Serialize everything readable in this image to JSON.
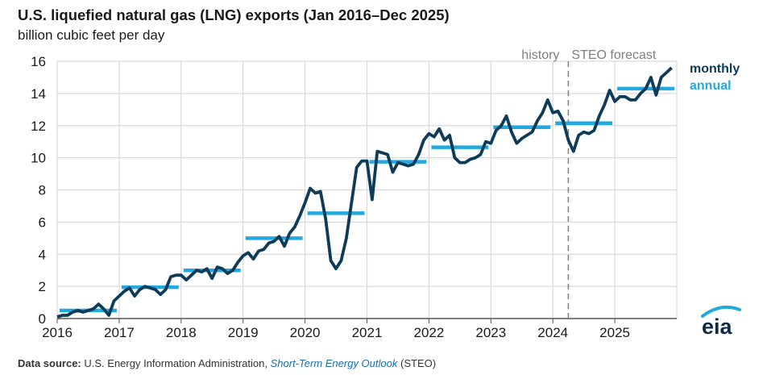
{
  "title": "U.S. liquefied natural gas (LNG) exports (Jan 2016–Dec 2025)",
  "subtitle": "billion cubic feet per day",
  "source": {
    "label": "Data source:",
    "org": "U.S. Energy Information Administration,",
    "report": "Short-Term Energy Outlook",
    "abbr": "(STEO)"
  },
  "logo": {
    "text": "eia"
  },
  "colors": {
    "monthly": "#0e3b58",
    "annual": "#22a9df",
    "grid": "#d9d9d9",
    "divider": "#7f7f7f"
  },
  "chart_data": {
    "type": "line",
    "title": "U.S. liquefied natural gas (LNG) exports (Jan 2016–Dec 2025)",
    "ylabel": "billion cubic feet per day",
    "xlabel": "",
    "ylim": [
      0,
      16
    ],
    "xlim": [
      2016,
      2026
    ],
    "yticks": [
      0,
      2,
      4,
      6,
      8,
      10,
      12,
      14,
      16
    ],
    "xticks": [
      "2016",
      "2017",
      "2018",
      "2019",
      "2020",
      "2021",
      "2022",
      "2023",
      "2024",
      "2025"
    ],
    "grid": true,
    "legend": "top-right",
    "annotations": {
      "history_label": "history",
      "forecast_label": "STEO forecast",
      "forecast_start": 2024.25
    },
    "series": [
      {
        "name": "monthly",
        "start": 2016.0,
        "step": 0.08333,
        "values": [
          0.1,
          0.2,
          0.2,
          0.4,
          0.5,
          0.4,
          0.5,
          0.6,
          0.9,
          0.6,
          0.2,
          1.1,
          1.4,
          1.7,
          1.9,
          1.4,
          1.8,
          2.0,
          1.9,
          1.8,
          1.5,
          1.8,
          2.6,
          2.7,
          2.7,
          2.4,
          2.7,
          3.0,
          2.9,
          3.1,
          2.5,
          3.2,
          3.1,
          2.8,
          3.0,
          3.5,
          3.9,
          4.1,
          3.7,
          4.2,
          4.3,
          4.7,
          4.8,
          5.1,
          4.5,
          5.3,
          5.7,
          6.4,
          7.2,
          8.1,
          7.8,
          7.9,
          6.2,
          3.6,
          3.1,
          3.6,
          5.0,
          7.2,
          9.4,
          9.8,
          9.8,
          7.4,
          10.4,
          10.3,
          10.2,
          9.1,
          9.7,
          9.6,
          9.5,
          9.6,
          10.2,
          11.1,
          11.5,
          11.3,
          11.8,
          11.1,
          11.4,
          10.0,
          9.7,
          9.7,
          9.9,
          10.0,
          10.2,
          11.0,
          10.9,
          11.7,
          12.0,
          12.6,
          11.6,
          10.9,
          11.2,
          11.4,
          11.6,
          12.3,
          12.8,
          13.6,
          12.8,
          12.9,
          12.3,
          11.1,
          10.4,
          11.4,
          11.6,
          11.5,
          11.7,
          12.6,
          13.3,
          14.2,
          13.5,
          13.8,
          13.8,
          13.6,
          13.6,
          14.0,
          14.3,
          15.0,
          13.9,
          15.0,
          15.3,
          15.6
        ]
      },
      {
        "name": "annual",
        "segments": [
          {
            "year": 2016,
            "value": 0.5
          },
          {
            "year": 2017,
            "value": 1.95
          },
          {
            "year": 2018,
            "value": 3.0
          },
          {
            "year": 2019,
            "value": 5.0
          },
          {
            "year": 2020,
            "value": 6.55
          },
          {
            "year": 2021,
            "value": 9.75
          },
          {
            "year": 2022,
            "value": 10.65
          },
          {
            "year": 2023,
            "value": 11.9
          },
          {
            "year": 2024,
            "value": 12.15
          },
          {
            "year": 2025,
            "value": 14.3
          }
        ]
      }
    ]
  }
}
